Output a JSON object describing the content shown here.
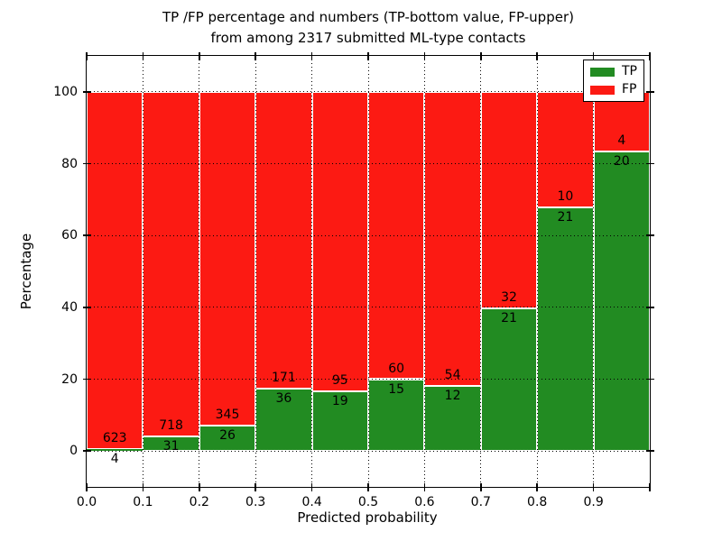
{
  "title": {
    "line1": "TP /FP percentage and numbers (TP-bottom value, FP-upper)",
    "line2": "from among 2317 submitted ML-type contacts"
  },
  "chart_data": {
    "type": "bar",
    "stacked": true,
    "normalized": "each bin scaled to 100 percent",
    "title": "TP /FP percentage and numbers (TP-bottom value, FP-upper) from among 2317 submitted ML-type contacts",
    "xlabel": "Predicted probability",
    "ylabel": "Percentage",
    "total_contacts": 2317,
    "xlim": [
      0.0,
      1.0
    ],
    "ylim": [
      -10,
      110
    ],
    "yticks": [
      0,
      20,
      40,
      60,
      80,
      100
    ],
    "xtick_labels": [
      "0.0",
      "0.1",
      "0.2",
      "0.3",
      "0.4",
      "0.5",
      "0.6",
      "0.7",
      "0.8",
      "0.9"
    ],
    "grid": "dotted, both axes, drawn over bars",
    "legend": {
      "position": "upper right",
      "entries": [
        {
          "label": "TP",
          "color": "#228b22"
        },
        {
          "label": "FP",
          "color": "#fc1a13"
        }
      ]
    },
    "bar_edge_color": "#ffffff",
    "bins": [
      {
        "x_start": 0.0,
        "x_end": 0.1,
        "tp": 4,
        "fp": 623
      },
      {
        "x_start": 0.1,
        "x_end": 0.2,
        "tp": 31,
        "fp": 718
      },
      {
        "x_start": 0.2,
        "x_end": 0.3,
        "tp": 26,
        "fp": 345
      },
      {
        "x_start": 0.3,
        "x_end": 0.4,
        "tp": 36,
        "fp": 171
      },
      {
        "x_start": 0.4,
        "x_end": 0.5,
        "tp": 19,
        "fp": 95
      },
      {
        "x_start": 0.5,
        "x_end": 0.6,
        "tp": 15,
        "fp": 60
      },
      {
        "x_start": 0.6,
        "x_end": 0.7,
        "tp": 12,
        "fp": 54
      },
      {
        "x_start": 0.7,
        "x_end": 0.8,
        "tp": 21,
        "fp": 32
      },
      {
        "x_start": 0.8,
        "x_end": 0.9,
        "tp": 21,
        "fp": 10
      },
      {
        "x_start": 0.9,
        "x_end": 1.0,
        "tp": 20,
        "fp": 4
      }
    ],
    "series": [
      {
        "name": "TP",
        "color": "#228b22",
        "values_pct": [
          0.64,
          4.14,
          7.01,
          17.39,
          16.67,
          20.0,
          18.18,
          39.62,
          67.74,
          83.33
        ]
      },
      {
        "name": "FP",
        "color": "#fc1a13",
        "values_pct": [
          99.36,
          95.86,
          92.99,
          82.61,
          83.33,
          80.0,
          81.82,
          60.38,
          32.26,
          16.67
        ]
      }
    ]
  }
}
